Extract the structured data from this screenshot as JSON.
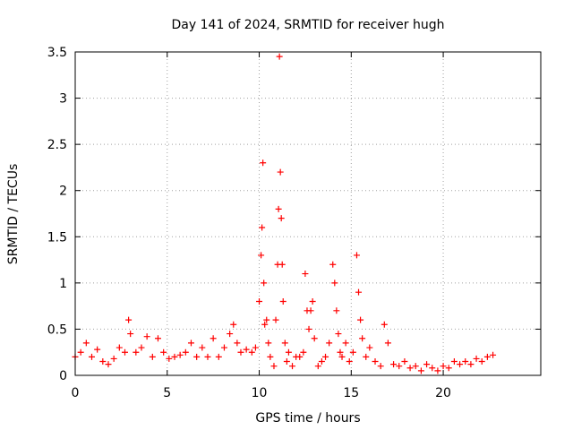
{
  "chart_data": {
    "type": "scatter",
    "title": "Day 141 of 2024, SRMTID for receiver hugh",
    "xlabel": "GPS time / hours",
    "ylabel": "SRMTID / TECUs",
    "xlim": [
      0,
      25.3
    ],
    "ylim": [
      0,
      3.5
    ],
    "xticks": [
      0,
      5,
      10,
      15,
      20
    ],
    "xtick_labels": [
      "0",
      "5",
      "10",
      "15",
      "20"
    ],
    "yticks": [
      0,
      0.5,
      1,
      1.5,
      2,
      2.5,
      3,
      3.5
    ],
    "ytick_labels": [
      "0",
      "0.5",
      "1",
      "1.5",
      "2",
      "2.5",
      "3",
      "3.5"
    ],
    "grid": true,
    "marker": "+",
    "series": [
      {
        "name": "SRMTID",
        "color": "#ff0000",
        "x": [
          0.0,
          0.3,
          0.6,
          0.9,
          1.2,
          1.5,
          1.8,
          2.1,
          2.4,
          2.7,
          2.9,
          3.0,
          3.3,
          3.6,
          3.9,
          4.2,
          4.5,
          4.8,
          5.1,
          5.4,
          5.7,
          6.0,
          6.3,
          6.6,
          6.9,
          7.2,
          7.5,
          7.8,
          8.1,
          8.4,
          8.6,
          8.8,
          9.0,
          9.3,
          9.6,
          9.8,
          10.0,
          10.1,
          10.15,
          10.2,
          10.25,
          10.3,
          10.4,
          10.5,
          10.6,
          10.8,
          10.9,
          11.0,
          11.05,
          11.1,
          11.15,
          11.2,
          11.25,
          11.3,
          11.4,
          11.5,
          11.6,
          11.8,
          12.0,
          12.2,
          12.4,
          12.5,
          12.6,
          12.7,
          12.8,
          12.9,
          13.0,
          13.2,
          13.4,
          13.6,
          13.8,
          14.0,
          14.1,
          14.2,
          14.3,
          14.4,
          14.5,
          14.7,
          14.9,
          15.1,
          15.3,
          15.4,
          15.5,
          15.6,
          15.8,
          16.0,
          16.3,
          16.6,
          16.8,
          17.0,
          17.3,
          17.6,
          17.9,
          18.2,
          18.5,
          18.8,
          19.1,
          19.4,
          19.7,
          20.0,
          20.3,
          20.6,
          20.9,
          21.2,
          21.5,
          21.8,
          22.1,
          22.4,
          22.7
        ],
        "y": [
          0.2,
          0.25,
          0.35,
          0.2,
          0.28,
          0.15,
          0.12,
          0.18,
          0.3,
          0.25,
          0.6,
          0.45,
          0.25,
          0.3,
          0.42,
          0.2,
          0.4,
          0.25,
          0.18,
          0.2,
          0.22,
          0.25,
          0.35,
          0.2,
          0.3,
          0.2,
          0.4,
          0.2,
          0.3,
          0.45,
          0.55,
          0.35,
          0.25,
          0.28,
          0.25,
          0.3,
          0.8,
          1.3,
          1.6,
          2.3,
          1.0,
          0.55,
          0.6,
          0.35,
          0.2,
          0.1,
          0.6,
          1.2,
          1.8,
          3.45,
          2.2,
          1.7,
          1.2,
          0.8,
          0.35,
          0.15,
          0.25,
          0.1,
          0.2,
          0.2,
          0.25,
          1.1,
          0.7,
          0.5,
          0.7,
          0.8,
          0.4,
          0.1,
          0.15,
          0.2,
          0.35,
          1.2,
          1.0,
          0.7,
          0.45,
          0.25,
          0.2,
          0.35,
          0.15,
          0.25,
          1.3,
          0.9,
          0.6,
          0.4,
          0.2,
          0.3,
          0.15,
          0.1,
          0.55,
          0.35,
          0.12,
          0.1,
          0.15,
          0.08,
          0.1,
          0.05,
          0.12,
          0.08,
          0.05,
          0.1,
          0.08,
          0.15,
          0.12,
          0.15,
          0.12,
          0.18,
          0.15,
          0.2,
          0.22
        ]
      }
    ]
  }
}
